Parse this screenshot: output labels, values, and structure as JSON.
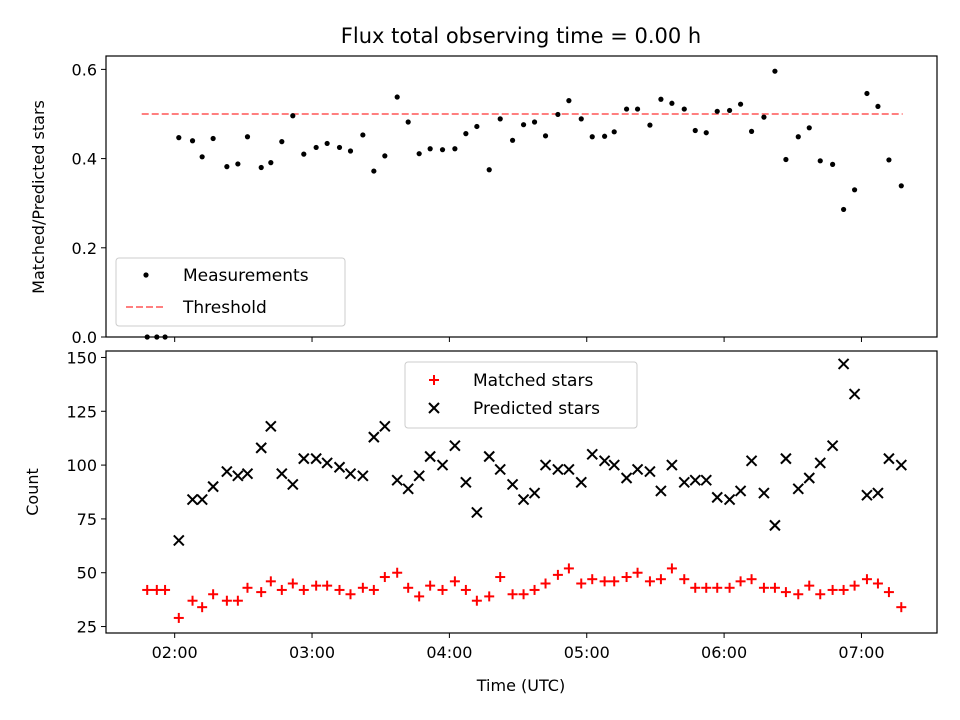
{
  "chart_data": [
    {
      "type": "scatter",
      "title": "Flux total observing time = 0.00 h",
      "xlabel": "",
      "ylabel": "Matched/Predicted stars",
      "xlim": [
        1.5,
        7.55
      ],
      "ylim": [
        0.0,
        0.63
      ],
      "yticks": [
        0.0,
        0.2,
        0.4,
        0.6
      ],
      "ytick_labels": [
        "0.0",
        "0.2",
        "0.4",
        "0.6"
      ],
      "legend_position": "lower-left",
      "series": [
        {
          "name": "Measurements",
          "kind": "scatter",
          "color": "#000000",
          "x": [
            1.8,
            1.87,
            1.93,
            2.03,
            2.13,
            2.2,
            2.28,
            2.38,
            2.46,
            2.53,
            2.63,
            2.7,
            2.78,
            2.86,
            2.94,
            3.03,
            3.11,
            3.2,
            3.28,
            3.37,
            3.45,
            3.53,
            3.62,
            3.7,
            3.78,
            3.86,
            3.95,
            4.04,
            4.12,
            4.2,
            4.29,
            4.37,
            4.46,
            4.54,
            4.62,
            4.7,
            4.79,
            4.87,
            4.96,
            5.04,
            5.13,
            5.2,
            5.29,
            5.37,
            5.46,
            5.54,
            5.62,
            5.71,
            5.79,
            5.87,
            5.95,
            6.04,
            6.12,
            6.2,
            6.29,
            6.37,
            6.45,
            6.54,
            6.62,
            6.7,
            6.79,
            6.87,
            6.95,
            7.04,
            7.12,
            7.2,
            7.29
          ],
          "y": [
            0.0,
            0.0,
            0.0,
            0.447,
            0.44,
            0.404,
            0.445,
            0.382,
            0.388,
            0.449,
            0.38,
            0.391,
            0.438,
            0.496,
            0.41,
            0.425,
            0.434,
            0.425,
            0.417,
            0.453,
            0.372,
            0.406,
            0.538,
            0.482,
            0.411,
            0.422,
            0.42,
            0.422,
            0.456,
            0.472,
            0.375,
            0.489,
            0.441,
            0.476,
            0.482,
            0.451,
            0.499,
            0.53,
            0.489,
            0.449,
            0.45,
            0.46,
            0.511,
            0.511,
            0.475,
            0.533,
            0.524,
            0.511,
            0.463,
            0.458,
            0.506,
            0.508,
            0.522,
            0.461,
            0.493,
            0.596,
            0.398,
            0.449,
            0.469,
            0.395,
            0.387,
            0.286,
            0.33,
            0.546,
            0.517,
            0.397,
            0.339
          ]
        },
        {
          "name": "Threshold",
          "kind": "dashed-line",
          "color": "#ff7f7f",
          "x": [
            1.76,
            7.3
          ],
          "y": [
            0.5,
            0.5
          ]
        }
      ]
    },
    {
      "type": "scatter",
      "title": "",
      "xlabel": "Time (UTC)",
      "ylabel": "Count",
      "xlim": [
        1.5,
        7.55
      ],
      "ylim": [
        22,
        153
      ],
      "yticks": [
        25,
        50,
        75,
        100,
        125,
        150
      ],
      "ytick_labels": [
        "25",
        "50",
        "75",
        "100",
        "125",
        "150"
      ],
      "xticks": [
        2,
        3,
        4,
        5,
        6,
        7
      ],
      "xtick_labels": [
        "02:00",
        "03:00",
        "04:00",
        "05:00",
        "06:00",
        "07:00"
      ],
      "legend_position": "upper-center",
      "series": [
        {
          "name": "Matched stars",
          "kind": "plus",
          "color": "#ff0000",
          "x": [
            1.8,
            1.87,
            1.93,
            2.03,
            2.13,
            2.2,
            2.28,
            2.38,
            2.46,
            2.53,
            2.63,
            2.7,
            2.78,
            2.86,
            2.94,
            3.03,
            3.11,
            3.2,
            3.28,
            3.37,
            3.45,
            3.53,
            3.62,
            3.7,
            3.78,
            3.86,
            3.95,
            4.04,
            4.12,
            4.2,
            4.29,
            4.37,
            4.46,
            4.54,
            4.62,
            4.7,
            4.79,
            4.87,
            4.96,
            5.04,
            5.13,
            5.2,
            5.29,
            5.37,
            5.46,
            5.54,
            5.62,
            5.71,
            5.79,
            5.87,
            5.95,
            6.04,
            6.12,
            6.2,
            6.29,
            6.37,
            6.45,
            6.54,
            6.62,
            6.7,
            6.79,
            6.87,
            6.95,
            7.04,
            7.12,
            7.2,
            7.29
          ],
          "y": [
            42,
            42,
            42,
            29,
            37,
            34,
            40,
            37,
            37,
            43,
            41,
            46,
            42,
            45,
            42,
            44,
            44,
            42,
            40,
            43,
            42,
            48,
            50,
            43,
            39,
            44,
            42,
            46,
            42,
            37,
            39,
            48,
            40,
            40,
            42,
            45,
            49,
            52,
            45,
            47,
            46,
            46,
            48,
            50,
            46,
            47,
            52,
            47,
            43,
            43,
            43,
            43,
            46,
            47,
            43,
            43,
            41,
            40,
            44,
            40,
            42,
            42,
            44,
            47,
            45,
            41,
            34
          ]
        },
        {
          "name": "Predicted stars",
          "kind": "x",
          "color": "#000000",
          "x": [
            2.03,
            2.13,
            2.2,
            2.28,
            2.38,
            2.46,
            2.53,
            2.63,
            2.7,
            2.78,
            2.86,
            2.94,
            3.03,
            3.11,
            3.2,
            3.28,
            3.37,
            3.45,
            3.53,
            3.62,
            3.7,
            3.78,
            3.86,
            3.95,
            4.04,
            4.12,
            4.2,
            4.29,
            4.37,
            4.46,
            4.54,
            4.62,
            4.7,
            4.79,
            4.87,
            4.96,
            5.04,
            5.13,
            5.2,
            5.29,
            5.37,
            5.46,
            5.54,
            5.62,
            5.71,
            5.79,
            5.87,
            5.95,
            6.04,
            6.12,
            6.2,
            6.29,
            6.37,
            6.45,
            6.54,
            6.62,
            6.7,
            6.79,
            6.87,
            6.95,
            7.04,
            7.12,
            7.2,
            7.29
          ],
          "y": [
            65,
            84,
            84,
            90,
            97,
            95,
            96,
            108,
            118,
            96,
            91,
            103,
            103,
            101,
            99,
            96,
            95,
            113,
            118,
            93,
            89,
            95,
            104,
            100,
            109,
            92,
            78,
            104,
            98,
            91,
            84,
            87,
            100,
            98,
            98,
            92,
            105,
            102,
            100,
            94,
            98,
            97,
            88,
            100,
            92,
            93,
            93,
            85,
            84,
            88,
            102,
            87,
            72,
            103,
            89,
            94,
            101,
            109,
            147,
            133,
            86,
            87,
            103,
            100
          ]
        }
      ]
    }
  ]
}
